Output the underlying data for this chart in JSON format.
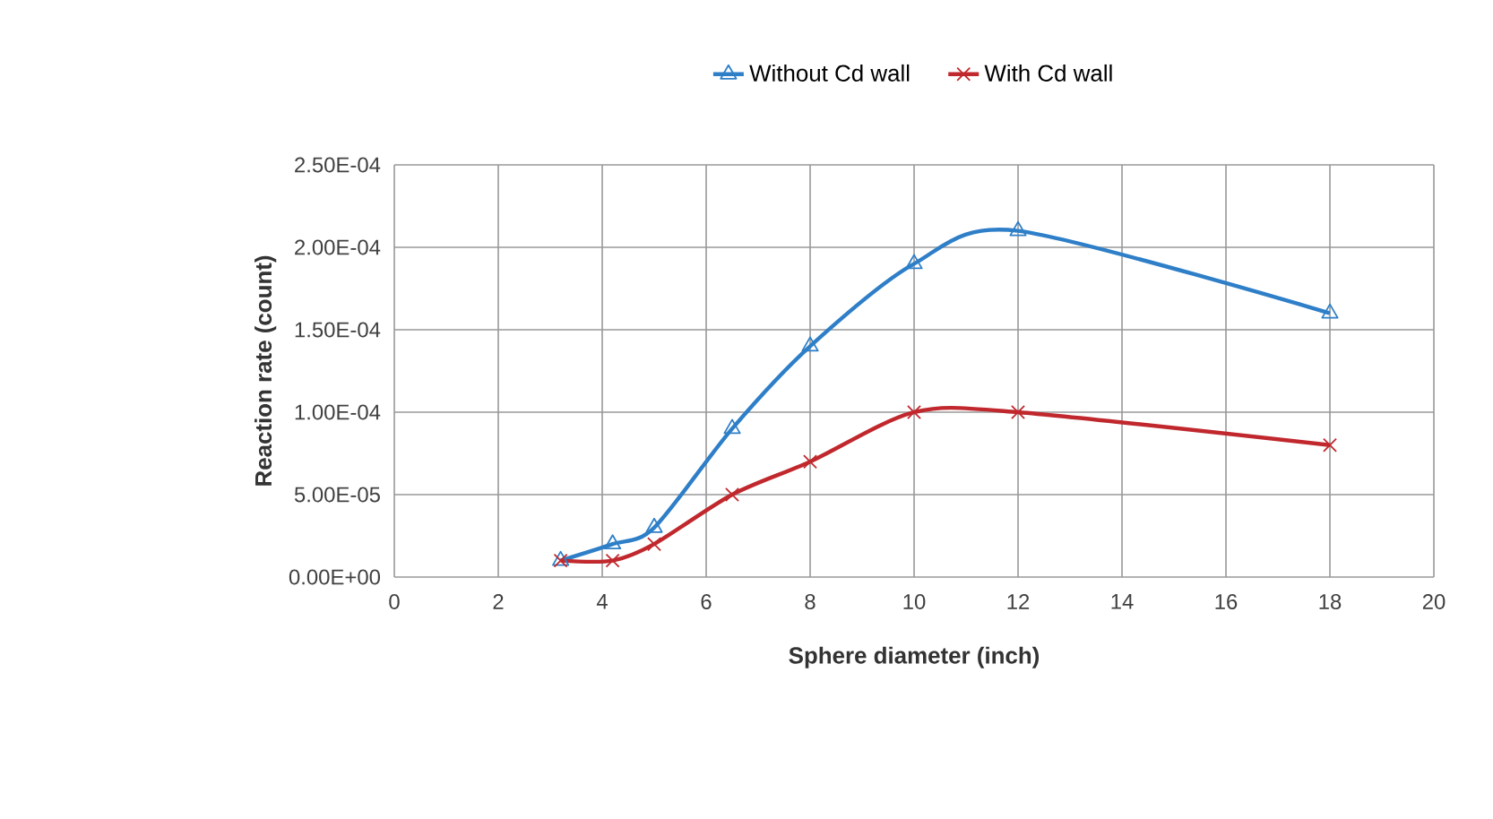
{
  "chart_data": {
    "type": "line",
    "xlabel": "Sphere diameter (inch)",
    "ylabel": "Reaction rate (count)",
    "series": [
      {
        "name": "Without Cd wall",
        "color": "#2e7fc8",
        "marker": "triangle",
        "x": [
          3.2,
          4.2,
          5,
          6.5,
          8,
          10,
          12,
          18
        ],
        "values": [
          1e-05,
          2e-05,
          3e-05,
          9e-05,
          0.00014,
          0.00019,
          0.00021,
          0.00016
        ]
      },
      {
        "name": "With Cd wall",
        "color": "#c0282d",
        "marker": "cross",
        "x": [
          3.2,
          4.2,
          5,
          6.5,
          8,
          10,
          12,
          18
        ],
        "values": [
          1e-05,
          1e-05,
          2e-05,
          5e-05,
          7e-05,
          0.0001,
          0.0001,
          8e-05
        ]
      }
    ],
    "xlim": [
      0,
      20
    ],
    "xticks": [
      0,
      2,
      4,
      6,
      8,
      10,
      12,
      14,
      16,
      18,
      20
    ],
    "ylim": [
      0,
      0.00025
    ],
    "yticks": [
      {
        "value": 0,
        "label": "0.00E+00"
      },
      {
        "value": 5e-05,
        "label": "5.00E-05"
      },
      {
        "value": 0.0001,
        "label": "1.00E-04"
      },
      {
        "value": 0.00015,
        "label": "1.50E-04"
      },
      {
        "value": 0.0002,
        "label": "2.00E-04"
      },
      {
        "value": 0.00025,
        "label": "2.50E-04"
      }
    ],
    "grid": true,
    "legend": "top",
    "line_style": "solid"
  }
}
